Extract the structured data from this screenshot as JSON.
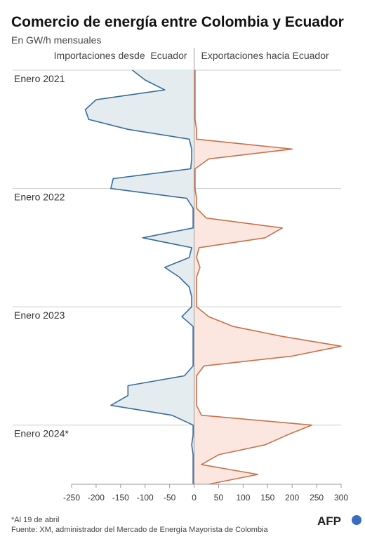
{
  "chart_data": {
    "type": "mirror-area",
    "title": "Comercio de energía entre Colombia y Ecuador",
    "subtitle": "En GW/h mensuales",
    "footnote": "*Al 19 de abril",
    "source": "Fuente: XM, administrador del Mercado de Energía Mayorista de Colombia",
    "logo": "AFP",
    "categories": [
      "Enero 2021",
      null,
      null,
      null,
      null,
      null,
      null,
      null,
      null,
      null,
      null,
      null,
      "Enero 2022",
      null,
      null,
      null,
      null,
      null,
      null,
      null,
      null,
      null,
      null,
      null,
      "Enero 2023",
      null,
      null,
      null,
      null,
      null,
      null,
      null,
      null,
      null,
      null,
      null,
      "Enero 2024*",
      null,
      null,
      null,
      null,
      null,
      null
    ],
    "series": [
      {
        "name": "Importaciones desde  Ecuador",
        "color": "#3a6d9a",
        "fill": "#e4ecf0",
        "values": [
          -126,
          -100,
          -60,
          -200,
          -222,
          -215,
          -135,
          -10,
          -5,
          -5,
          -7,
          -165,
          -170,
          -15,
          -2,
          -2,
          -2,
          -105,
          -5,
          -10,
          -60,
          -30,
          -10,
          -5,
          -5,
          -25,
          -2,
          -2,
          -2,
          -2,
          -2,
          -20,
          -135,
          -135,
          -170,
          -45,
          -2,
          -2,
          -5,
          -2,
          -2,
          -2,
          -2
        ]
      },
      {
        "name": "Exportaciones hacia Ecuador",
        "color": "#c8714a",
        "fill": "#fbe7e0",
        "values": [
          2,
          2,
          2,
          2,
          2,
          2,
          5,
          5,
          200,
          30,
          2,
          2,
          2,
          5,
          5,
          25,
          180,
          145,
          10,
          5,
          12,
          5,
          5,
          5,
          5,
          30,
          80,
          180,
          300,
          200,
          20,
          5,
          5,
          5,
          5,
          15,
          240,
          190,
          145,
          50,
          15,
          130,
          30
        ]
      }
    ],
    "xlim": [
      -250,
      300
    ],
    "xticks": [
      -250,
      -200,
      -150,
      -100,
      -50,
      0,
      50,
      100,
      150,
      200,
      250,
      300
    ]
  }
}
